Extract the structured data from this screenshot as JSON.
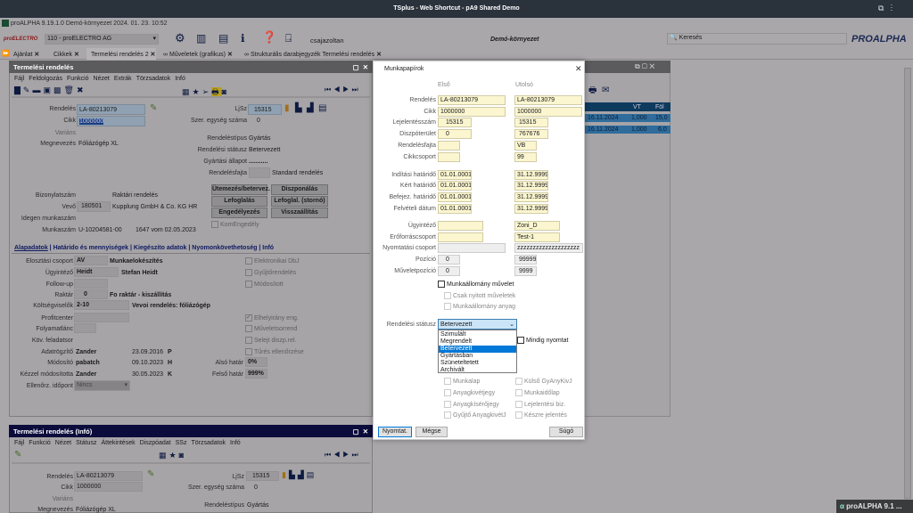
{
  "window": {
    "title": "TSplus - Web Shortcut - pA9 Shared Demo"
  },
  "app": {
    "title": "proALPHA 9.19.1.0 Demó-környezet 2024. 01. 23. 10:52",
    "logo": "proELECTRO",
    "company": "110 - proELECTRO AG",
    "user": "csajazoltan",
    "environment": "Demó-környezet",
    "search_placeholder": "Keresés",
    "brand_logo": "PROALPHA",
    "taskbar_item": "proALPHA 9.1 ..."
  },
  "tabs": [
    {
      "label": "Ajánlat"
    },
    {
      "label": "Cikkek"
    },
    {
      "label": "Termelési rendelés 2",
      "active": true
    },
    {
      "label": "Műveletek (grafikus)"
    },
    {
      "label": "Strukturális darabjegyzék Termelési rendelés"
    }
  ],
  "top_panel": {
    "title": "Termelési rendelés",
    "menu": [
      "Fájl",
      "Feldolgozás",
      "Funkció",
      "Nézet",
      "Extrák",
      "Törzsadatok",
      "Infó"
    ],
    "rendeles": {
      "label": "Rendelés",
      "value": "LA-80213079"
    },
    "cikk": {
      "label": "Cikk",
      "value": "1000000"
    },
    "varians": {
      "label": "Variáns"
    },
    "megnevezes": {
      "label": "Megnevezés",
      "value": "Fóliázógép XL"
    },
    "ljsz": {
      "label": "LjSz",
      "value": "15315"
    },
    "szer": {
      "label": "Szer. egység száma",
      "value": "0"
    },
    "tipus": {
      "label": "Rendeléstípus",
      "value": "Gyártás"
    },
    "statusz": {
      "label": "Rendelési státusz",
      "value": "Betervezett"
    },
    "allapot": {
      "label": "Gyártási állapot",
      "value": "..........."
    },
    "fajta": {
      "label": "Rendelésfajta",
      "value": "Standard rendelés"
    },
    "bizonylat": {
      "label": "Bizonylatszám",
      "value": "Raktári rendelés"
    },
    "vevo": {
      "label": "Vevő",
      "code": "180501",
      "name": "Kupplung GmbH & Co. KG HR"
    },
    "idegen": {
      "label": "Idegen munkaszám"
    },
    "munkaszam": {
      "label": "Munkaszám",
      "value": "U-10204581-00",
      "extra": "1647 vom 02.05.2023"
    },
    "buttons": [
      "Ütemezés/betervez.",
      "Diszponálás",
      "Lefoglalás",
      "Lefoglal. (stornó)",
      "Engedélyezés",
      "Visszaállítás"
    ],
    "kom": "KomEngedély",
    "subtabs": [
      "Alapadatok",
      "Határido és mennyiségek",
      "Kiegészito adatok",
      "Nyomonkövethetoség",
      "Infó"
    ],
    "fields": {
      "elosztasi": {
        "label": "Elosztási csoport",
        "code": "AV",
        "text": "Munkaelokészítés"
      },
      "ugyintezo": {
        "label": "Ügyintéző",
        "code": "Heidt",
        "text": "Stefan Heidt"
      },
      "followup": {
        "label": "Follow-up"
      },
      "raktar": {
        "label": "Raktár",
        "code": "0",
        "text": "Fo raktár - kiszállítás"
      },
      "koltseg": {
        "label": "Költségviselők",
        "code": "2-10",
        "text": "Vevoi rendelés: fóliázógép"
      },
      "profit": {
        "label": "Profitcenter"
      },
      "folyamat": {
        "label": "Folyamatlánc"
      },
      "kov": {
        "label": "Köv. feladatsor"
      },
      "adatrogzito": {
        "label": "Adatrögzítő",
        "user": "Zander",
        "date": "23.09.2016",
        "flag": "P"
      },
      "modosito": {
        "label": "Módosító",
        "user": "pabatch",
        "date": "09.10.2023",
        "flag": "H"
      },
      "kezzel": {
        "label": "Kézzel módosította",
        "user": "Zander",
        "date": "30.05.2023",
        "flag": "K"
      },
      "also": {
        "label": "Alsó határ",
        "value": "0%"
      },
      "felso": {
        "label": "Felső határ",
        "value": "999%"
      },
      "ellenorz": {
        "label": "Ellenőrz. időpont",
        "value": "Nincs"
      }
    },
    "checks": [
      {
        "label": "Elektronikai DbJ",
        "checked": false
      },
      {
        "label": "Gyűjtőrendelés",
        "checked": false
      },
      {
        "label": "Módosított",
        "checked": false
      },
      {
        "label": "Elhelyirány eng.",
        "checked": true
      },
      {
        "label": "Műveletsorrend",
        "checked": false
      },
      {
        "label": "Selejt diszp.rel.",
        "checked": false
      },
      {
        "label": "Tűrés ellenőrzése",
        "checked": false
      }
    ]
  },
  "bottom_panel": {
    "title": "Termelési rendelés (Infó)",
    "menu": [
      "Fájl",
      "Funkció",
      "Nézet",
      "Státusz",
      "Áttekintések",
      "Diszpóadat",
      "SSz",
      "Törzsadatok",
      "Infó"
    ],
    "rendeles": {
      "label": "Rendelés",
      "value": "LA-80213079"
    },
    "cikk": {
      "label": "Cikk",
      "value": "1000000"
    },
    "varians": {
      "label": "Variáns"
    },
    "megnevezes": {
      "label": "Megnevezés",
      "value": "Fóliázógép XL"
    },
    "ljsz": {
      "label": "LjSz",
      "value": "15315"
    },
    "szer": {
      "label": "Szer. egység száma",
      "value": "0"
    },
    "tipus": {
      "label": "Rendeléstípus",
      "value": "Gyártás"
    }
  },
  "bg_table": {
    "columns": [
      "VT",
      "Föl"
    ],
    "rows": [
      [
        "16.11.2024",
        "1,000",
        "15,0"
      ],
      [
        "16.11.2024",
        "1,000",
        "6,0"
      ]
    ]
  },
  "dialog": {
    "title": "Munkapapírok",
    "col_first": "Első",
    "col_last": "Utolsó",
    "rows": [
      {
        "label": "Rendelés",
        "first": "LA-80213079",
        "last": "LA-80213079"
      },
      {
        "label": "Cikk",
        "first": "1000000",
        "last": "1000000"
      },
      {
        "label": "Lejelentésszám",
        "first": "15315",
        "last": "15315"
      },
      {
        "label": "Diszpóterület",
        "first": "0",
        "last": "767676"
      },
      {
        "label": "Rendelésfajta",
        "first": "",
        "last": "VB"
      },
      {
        "label": "Cikkcsoport",
        "first": "",
        "last": "99"
      },
      {
        "label": "Indítási határidő",
        "first": "01.01.0001",
        "last": "31.12.9999"
      },
      {
        "label": "Kért határidő",
        "first": "01.01.0001",
        "last": "31.12.9999"
      },
      {
        "label": "Befejez. határidő",
        "first": "01.01.0001",
        "last": "31.12.9999"
      },
      {
        "label": "Felvételi dátum",
        "first": "01.01.0001",
        "last": "31.12.9999"
      },
      {
        "label": "Ügyintéző",
        "first": "",
        "last": "Zoni_D"
      },
      {
        "label": "Erőforráscsoport",
        "first": "",
        "last": "Test-1"
      },
      {
        "label": "Nyomtatási csoport",
        "first": "",
        "last": "zzzzzzzzzzzzzzzzzzzz"
      },
      {
        "label": "Pozíció",
        "first": "0",
        "last": "999999"
      },
      {
        "label": "Műveletpozíció",
        "first": "0",
        "last": "9999"
      }
    ],
    "munkaallomany": "Munkaállomány művelet",
    "csak_nyitott": "Csak nyitott műveletek",
    "munkaallomany_anyag": "Munkaállomány anyag",
    "status_label": "Rendelési státusz",
    "status_value": "Betervezett",
    "status_options": [
      "Szimulált",
      "Megrendelt",
      "Betervezett",
      "Gyártásban",
      "Szüneteltetett",
      "Archivált"
    ],
    "mindig": "Mindig nyomtat",
    "docs": [
      "Munkalap",
      "Külső GyAnyKivJ",
      "Anyagkivétjegy",
      "Munkaidőlap",
      "Anyagkísérőjegy",
      "Lejelentési biz.",
      "Gyűjtő AnyagkivétJ",
      "Készre jelentés"
    ],
    "buttons": {
      "print": "Nyomtat.",
      "cancel": "Mégse",
      "help": "Súgó"
    },
    "selected_color": "#0078d7"
  }
}
